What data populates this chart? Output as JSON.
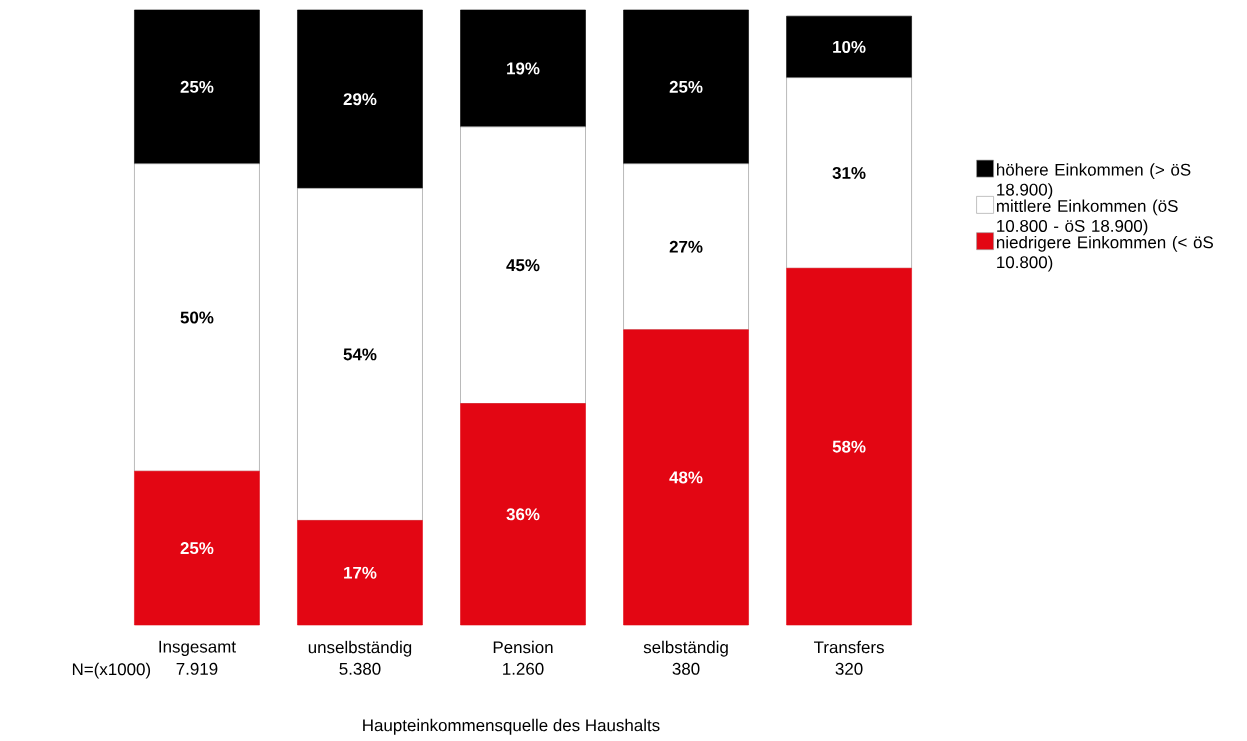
{
  "chart_data": {
    "type": "bar",
    "stacked": true,
    "xlabel": "Haupteinkommensquelle des Haushalts",
    "categories": [
      "Insgesamt",
      "unselbständig",
      "Pension",
      "selbständig",
      "Transfers"
    ],
    "series": [
      {
        "name": "niedrigere Einkommen (< öS 10.800)",
        "color": "#e30613",
        "values": [
          25,
          17,
          36,
          48,
          58
        ],
        "value_labels": [
          "25%",
          "17%",
          "36%",
          "48%",
          "58%"
        ]
      },
      {
        "name": "mittlere Einkommen (öS 10.800 - öS 18.900)",
        "color": "#ffffff",
        "values": [
          50,
          54,
          45,
          27,
          31
        ],
        "value_labels": [
          "50%",
          "54%",
          "45%",
          "27%",
          "31%"
        ]
      },
      {
        "name": "höhere Einkommen (> öS 18.900)",
        "color": "#000000",
        "values": [
          25,
          29,
          19,
          25,
          10
        ],
        "value_labels": [
          "25%",
          "29%",
          "19%",
          "25%",
          "10%"
        ]
      }
    ],
    "legend": "right",
    "annotations": [
      "N=(x1000)",
      "7.919",
      "5.380",
      "1.260",
      "380",
      "320"
    ]
  }
}
